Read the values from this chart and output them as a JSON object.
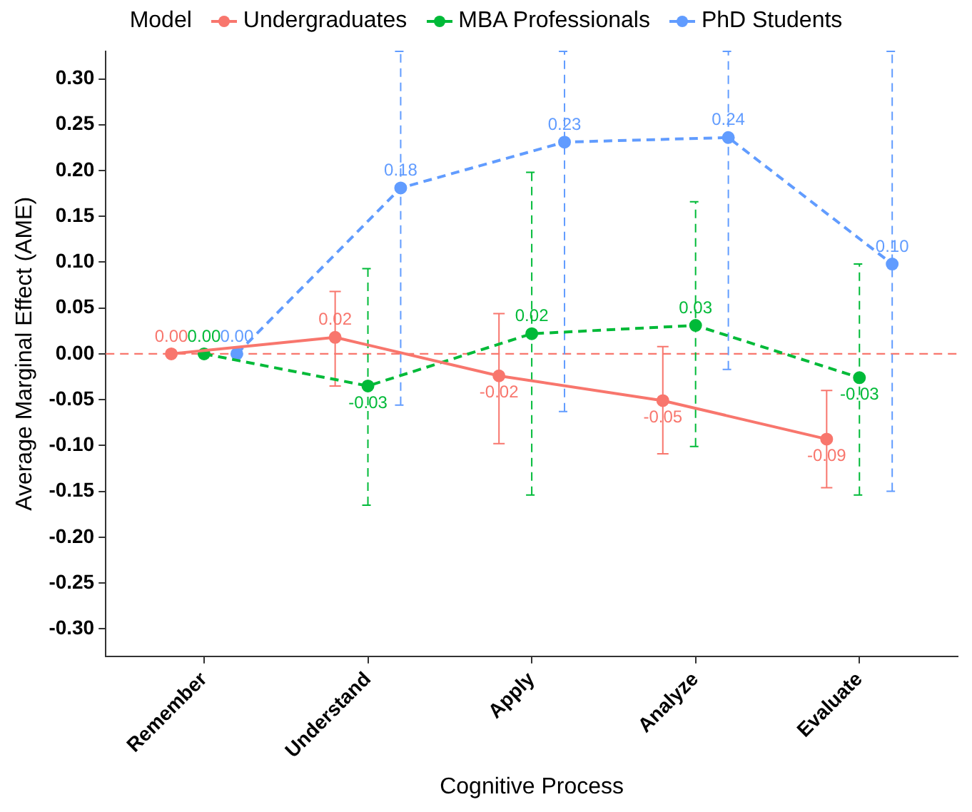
{
  "chart_data": {
    "type": "line",
    "xlabel": "Cognitive Process",
    "ylabel": "Average Marginal Effect (AME)",
    "legend_title": "Model",
    "legend": "top",
    "grid": false,
    "marker": "circle",
    "categories": [
      "Remember",
      "Understand",
      "Apply",
      "Analyze",
      "Evaluate"
    ],
    "ylim": [
      -0.33,
      0.33
    ],
    "yticks": [
      {
        "value": -0.3,
        "label": "-0.30"
      },
      {
        "value": -0.25,
        "label": "-0.25"
      },
      {
        "value": -0.2,
        "label": "-0.20"
      },
      {
        "value": -0.15,
        "label": "-0.15"
      },
      {
        "value": -0.1,
        "label": "-0.10"
      },
      {
        "value": -0.05,
        "label": "-0.05"
      },
      {
        "value": 0,
        "label": "0.00"
      },
      {
        "value": 0.05,
        "label": "0.05"
      },
      {
        "value": 0.1,
        "label": "0.10"
      },
      {
        "value": 0.15,
        "label": "0.15"
      },
      {
        "value": 0.2,
        "label": "0.20"
      },
      {
        "value": 0.25,
        "label": "0.25"
      },
      {
        "value": 0.3,
        "label": "0.30"
      }
    ],
    "ref_lines": [
      {
        "axis": "y",
        "value": 0,
        "color": "#f8766d",
        "line_style": "dashed"
      }
    ],
    "series": [
      {
        "name": "Undergraduates",
        "color": "#f8766d",
        "line_style": "solid",
        "values": [
          0,
          0.018,
          -0.024,
          -0.051,
          -0.093
        ],
        "errors": [
          null,
          [
            -0.035,
            0.068
          ],
          [
            -0.098,
            0.044
          ],
          [
            -0.109,
            0.008
          ],
          [
            -0.146,
            -0.04
          ]
        ],
        "value_labels": [
          "0.00",
          "0.02",
          "-0.02",
          "-0.05",
          "-0.09"
        ]
      },
      {
        "name": "MBA Professionals",
        "color": "#00ba38",
        "line_style": "dashed",
        "values": [
          0,
          -0.035,
          0.022,
          0.031,
          -0.026
        ],
        "errors": [
          null,
          [
            -0.165,
            0.093
          ],
          [
            -0.154,
            0.198
          ],
          [
            -0.101,
            0.166
          ],
          [
            -0.154,
            0.098
          ]
        ],
        "value_labels": [
          "0.00",
          "-0.03",
          "0.02",
          "0.03",
          "-0.03"
        ]
      },
      {
        "name": "PhD Students",
        "color": "#619cff",
        "line_style": "dashed",
        "values": [
          0,
          0.181,
          0.231,
          0.236,
          0.098
        ],
        "errors": [
          null,
          [
            -0.056,
            0.33
          ],
          [
            -0.063,
            0.33
          ],
          [
            -0.017,
            0.33
          ],
          [
            -0.15,
            0.33
          ]
        ],
        "value_labels": [
          "0.00",
          "0.18",
          "0.23",
          "0.24",
          "0.10"
        ]
      }
    ]
  }
}
